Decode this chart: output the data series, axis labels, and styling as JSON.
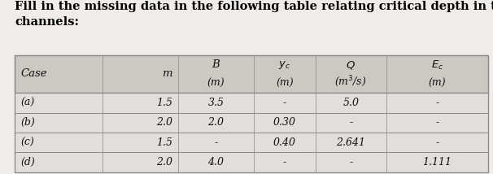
{
  "title": "Fill in the missing data in the following table relating critical depth in trapezoidal\nchannels:",
  "title_fontsize": 10.5,
  "data_rows": [
    [
      "(a)",
      "1.5",
      "3.5",
      "-",
      "5.0",
      "-"
    ],
    [
      "(b)",
      "2.0",
      "2.0",
      "0.30",
      "-",
      "-"
    ],
    [
      "(c)",
      "1.5",
      "-",
      "0.40",
      "2.641",
      "-"
    ],
    [
      "(d)",
      "2.0",
      "4.0",
      "-",
      "-",
      "1.111"
    ]
  ],
  "col_aligns": [
    "left",
    "right",
    "center",
    "center",
    "center",
    "center"
  ],
  "header_bg": "#ccc8c2",
  "data_bg": "#e2deda",
  "border_color": "#888888",
  "text_color": "#111111",
  "fig_bg": "#f0ece8"
}
